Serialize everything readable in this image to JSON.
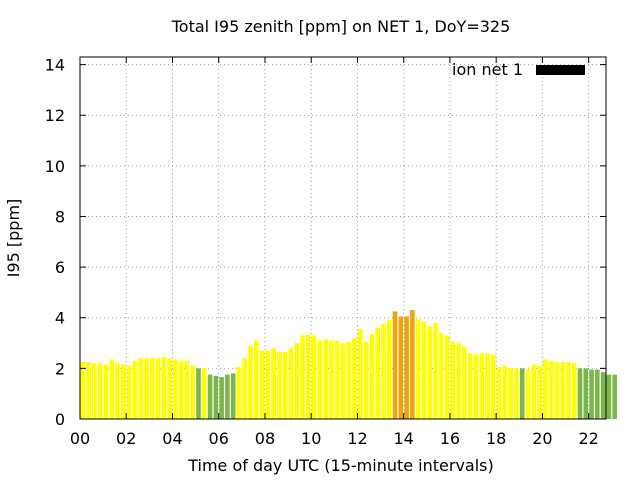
{
  "chart_data": {
    "type": "bar",
    "title": "Total I95 zenith [ppm] on NET 1, DoY=325",
    "xlabel": "Time of day UTC (15-minute intervals)",
    "ylabel": "I95 [ppm]",
    "ylim": [
      0,
      14.3
    ],
    "xlim": [
      0,
      22.75
    ],
    "yticks": [
      0,
      2,
      4,
      6,
      8,
      10,
      12,
      14
    ],
    "xticks": [
      0,
      2,
      4,
      6,
      8,
      10,
      12,
      14,
      16,
      18,
      20,
      22
    ],
    "xtick_labels": [
      "00",
      "02",
      "04",
      "06",
      "08",
      "10",
      "12",
      "14",
      "16",
      "18",
      "20",
      "22"
    ],
    "grid": true,
    "legend_position": "top-right",
    "series": [
      {
        "name": "ion net 1",
        "legend_color": "#000000",
        "bar_interval_hours": 0.25,
        "start_hour": 0,
        "values": [
          2.25,
          2.25,
          2.2,
          2.2,
          2.15,
          2.35,
          2.2,
          2.15,
          2.1,
          2.3,
          2.4,
          2.4,
          2.4,
          2.4,
          2.45,
          2.4,
          2.35,
          2.3,
          2.3,
          2.1,
          2.0,
          2.0,
          1.75,
          1.7,
          1.65,
          1.75,
          1.8,
          2.05,
          2.4,
          2.9,
          3.1,
          2.7,
          2.7,
          2.8,
          2.65,
          2.65,
          2.8,
          3.0,
          3.3,
          3.35,
          3.3,
          3.1,
          3.15,
          3.1,
          3.1,
          3.0,
          3.05,
          3.2,
          3.55,
          3.05,
          3.35,
          3.6,
          3.75,
          3.9,
          4.25,
          4.05,
          4.05,
          4.3,
          3.95,
          3.85,
          3.65,
          3.8,
          3.4,
          3.3,
          3.05,
          3.0,
          2.85,
          2.6,
          2.55,
          2.6,
          2.6,
          2.55,
          2.05,
          2.1,
          2.0,
          2.0,
          2.0,
          1.95,
          2.15,
          2.1,
          2.35,
          2.3,
          2.25,
          2.25,
          2.25,
          2.2,
          2.0,
          2.0,
          1.95,
          1.95,
          1.85,
          1.75,
          1.75
        ],
        "colors": [
          "#ffff00",
          "#ffff00",
          "#ffff00",
          "#ffff00",
          "#ffff00",
          "#ffff00",
          "#ffff00",
          "#ffff00",
          "#ffff00",
          "#ffff00",
          "#ffff00",
          "#ffff00",
          "#ffff00",
          "#ffff00",
          "#ffff00",
          "#ffff00",
          "#ffff00",
          "#ffff00",
          "#ffff00",
          "#ffff00",
          "#7ab648",
          "#ffff00",
          "#7ab648",
          "#7ab648",
          "#7ab648",
          "#7ab648",
          "#7ab648",
          "#ffff00",
          "#ffff00",
          "#ffff00",
          "#ffff00",
          "#ffff00",
          "#ffff00",
          "#ffff00",
          "#ffff00",
          "#ffff00",
          "#ffff00",
          "#ffff00",
          "#ffff00",
          "#ffff00",
          "#ffff00",
          "#ffff00",
          "#ffff00",
          "#ffff00",
          "#ffff00",
          "#ffff00",
          "#ffff00",
          "#ffff00",
          "#ffff00",
          "#ffff00",
          "#ffff00",
          "#ffff00",
          "#ffff00",
          "#ffff00",
          "#f0a30a",
          "#f0a30a",
          "#f0a30a",
          "#f0a30a",
          "#ffff00",
          "#ffff00",
          "#ffff00",
          "#ffff00",
          "#ffff00",
          "#ffff00",
          "#ffff00",
          "#ffff00",
          "#ffff00",
          "#ffff00",
          "#ffff00",
          "#ffff00",
          "#ffff00",
          "#ffff00",
          "#ffff00",
          "#ffff00",
          "#ffff00",
          "#ffff00",
          "#7ab648",
          "#ffff00",
          "#ffff00",
          "#ffff00",
          "#ffff00",
          "#ffff00",
          "#ffff00",
          "#ffff00",
          "#ffff00",
          "#ffff00",
          "#7ab648",
          "#7ab648",
          "#7ab648",
          "#7ab648",
          "#7ab648",
          "#7ab648",
          "#7ab648"
        ]
      }
    ]
  }
}
